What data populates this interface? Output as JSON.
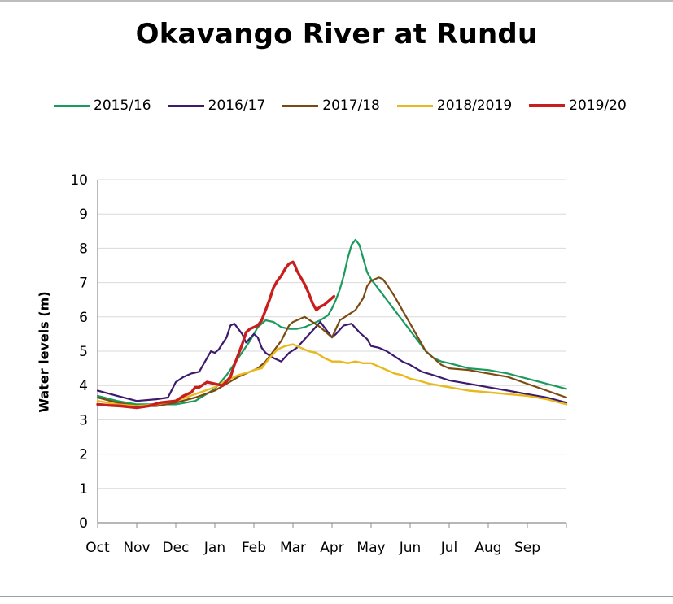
{
  "chart_data": {
    "type": "line",
    "title": "Okavango River at Rundu",
    "ylabel": "Water levels (m)",
    "xlabel": "",
    "ylim": [
      0,
      10
    ],
    "yticks": [
      "0",
      "1",
      "2",
      "3",
      "4",
      "5",
      "6",
      "7",
      "8",
      "9",
      "10"
    ],
    "xticks": [
      "Oct",
      "Nov",
      "Dec",
      "Jan",
      "Feb",
      "Mar",
      "Apr",
      "May",
      "Jun",
      "Jul",
      "Aug",
      "Sep"
    ],
    "x_unit": "month index (0 = start of Oct, 12 = end of Sep)",
    "grid": true,
    "legend_position": "top",
    "series": [
      {
        "name": "2015/16",
        "color": "#1a9a5c",
        "width": 2.2,
        "x": [
          0,
          0.5,
          1,
          1.5,
          2,
          2.5,
          3,
          3.3,
          3.6,
          3.9,
          4.1,
          4.3,
          4.5,
          4.7,
          4.9,
          5.1,
          5.3,
          5.5,
          5.7,
          5.9,
          6,
          6.1,
          6.2,
          6.3,
          6.4,
          6.5,
          6.6,
          6.7,
          6.8,
          6.9,
          7,
          7.2,
          7.4,
          7.6,
          7.8,
          8,
          8.2,
          8.4,
          8.6,
          8.8,
          9,
          9.5,
          10,
          10.5,
          11,
          11.5,
          12
        ],
        "y": [
          3.7,
          3.55,
          3.45,
          3.45,
          3.45,
          3.55,
          3.9,
          4.3,
          4.8,
          5.3,
          5.7,
          5.9,
          5.85,
          5.7,
          5.65,
          5.65,
          5.7,
          5.8,
          5.9,
          6.05,
          6.25,
          6.5,
          6.8,
          7.2,
          7.7,
          8.1,
          8.25,
          8.1,
          7.7,
          7.3,
          7.1,
          6.8,
          6.5,
          6.2,
          5.9,
          5.6,
          5.3,
          5,
          4.8,
          4.7,
          4.65,
          4.5,
          4.45,
          4.35,
          4.2,
          4.05,
          3.9
        ]
      },
      {
        "name": "2016/17",
        "color": "#3d1a6e",
        "width": 2.2,
        "x": [
          0,
          0.5,
          1,
          1.5,
          1.8,
          2,
          2.2,
          2.4,
          2.6,
          2.8,
          2.9,
          3,
          3.1,
          3.3,
          3.4,
          3.5,
          3.7,
          3.8,
          4,
          4.1,
          4.2,
          4.3,
          4.5,
          4.7,
          4.9,
          5.1,
          5.3,
          5.5,
          5.7,
          5.9,
          6,
          6.1,
          6.3,
          6.5,
          6.7,
          6.9,
          7,
          7.2,
          7.4,
          7.6,
          7.8,
          8,
          8.3,
          8.6,
          9,
          9.5,
          10,
          10.5,
          11,
          11.5,
          12
        ],
        "y": [
          3.85,
          3.7,
          3.55,
          3.6,
          3.65,
          4.1,
          4.25,
          4.35,
          4.4,
          4.8,
          5.0,
          4.95,
          5.05,
          5.4,
          5.75,
          5.8,
          5.5,
          5.25,
          5.5,
          5.4,
          5.1,
          4.95,
          4.8,
          4.7,
          4.95,
          5.1,
          5.35,
          5.6,
          5.85,
          5.55,
          5.4,
          5.5,
          5.75,
          5.8,
          5.55,
          5.35,
          5.15,
          5.1,
          5.0,
          4.85,
          4.7,
          4.6,
          4.4,
          4.3,
          4.15,
          4.05,
          3.95,
          3.85,
          3.75,
          3.65,
          3.5
        ]
      },
      {
        "name": "2017/18",
        "color": "#7b4a12",
        "width": 2.2,
        "x": [
          0,
          0.5,
          1,
          1.5,
          2,
          2.5,
          3,
          3.3,
          3.6,
          3.9,
          4.1,
          4.3,
          4.5,
          4.7,
          4.9,
          5,
          5.1,
          5.3,
          5.5,
          5.7,
          5.9,
          6,
          6.2,
          6.4,
          6.6,
          6.8,
          6.9,
          7,
          7.1,
          7.2,
          7.3,
          7.4,
          7.6,
          7.8,
          8,
          8.2,
          8.4,
          8.6,
          8.8,
          9,
          9.5,
          10,
          10.5,
          11,
          11.5,
          12
        ],
        "y": [
          3.65,
          3.5,
          3.4,
          3.4,
          3.5,
          3.65,
          3.85,
          4.05,
          4.25,
          4.4,
          4.5,
          4.7,
          5.0,
          5.3,
          5.75,
          5.85,
          5.9,
          6.0,
          5.85,
          5.7,
          5.5,
          5.4,
          5.9,
          6.05,
          6.2,
          6.55,
          6.9,
          7.05,
          7.1,
          7.15,
          7.1,
          6.95,
          6.6,
          6.2,
          5.8,
          5.4,
          5.0,
          4.8,
          4.6,
          4.5,
          4.45,
          4.35,
          4.25,
          4.05,
          3.85,
          3.65
        ]
      },
      {
        "name": "2018/2019",
        "color": "#e8b81c",
        "width": 2.4,
        "x": [
          0,
          0.5,
          1,
          1.5,
          2,
          2.5,
          3,
          3.3,
          3.6,
          3.9,
          4,
          4.2,
          4.4,
          4.6,
          4.8,
          5,
          5.2,
          5.4,
          5.6,
          5.8,
          6,
          6.2,
          6.4,
          6.6,
          6.8,
          7,
          7.2,
          7.4,
          7.6,
          7.8,
          8,
          8.2,
          8.5,
          9,
          9.5,
          10,
          10.5,
          11,
          11.5,
          12
        ],
        "y": [
          3.55,
          3.45,
          3.4,
          3.45,
          3.55,
          3.75,
          3.95,
          4.15,
          4.3,
          4.4,
          4.45,
          4.5,
          4.8,
          5.05,
          5.15,
          5.2,
          5.1,
          5.0,
          4.95,
          4.8,
          4.7,
          4.7,
          4.65,
          4.7,
          4.65,
          4.65,
          4.55,
          4.45,
          4.35,
          4.3,
          4.2,
          4.15,
          4.05,
          3.95,
          3.85,
          3.8,
          3.75,
          3.7,
          3.6,
          3.45
        ]
      },
      {
        "name": "2019/20",
        "color": "#c81e1e",
        "width": 3.4,
        "x": [
          0,
          0.3,
          0.6,
          1,
          1.3,
          1.6,
          2,
          2.2,
          2.4,
          2.5,
          2.6,
          2.8,
          3,
          3.2,
          3.4,
          3.5,
          3.6,
          3.7,
          3.8,
          3.9,
          4,
          4.1,
          4.2,
          4.3,
          4.4,
          4.5,
          4.6,
          4.7,
          4.8,
          4.9,
          5,
          5.05,
          5.1,
          5.2,
          5.3,
          5.4,
          5.5,
          5.6,
          5.7,
          5.8,
          5.85,
          5.9,
          6,
          6.05
        ],
        "y": [
          3.45,
          3.42,
          3.4,
          3.35,
          3.4,
          3.5,
          3.55,
          3.7,
          3.8,
          3.95,
          3.95,
          4.1,
          4.05,
          4.0,
          4.25,
          4.6,
          4.9,
          5.2,
          5.55,
          5.65,
          5.7,
          5.75,
          5.9,
          6.2,
          6.5,
          6.85,
          7.05,
          7.2,
          7.4,
          7.55,
          7.6,
          7.5,
          7.35,
          7.15,
          6.95,
          6.7,
          6.4,
          6.2,
          6.3,
          6.35,
          6.4,
          6.45,
          6.55,
          6.6
        ]
      }
    ]
  }
}
